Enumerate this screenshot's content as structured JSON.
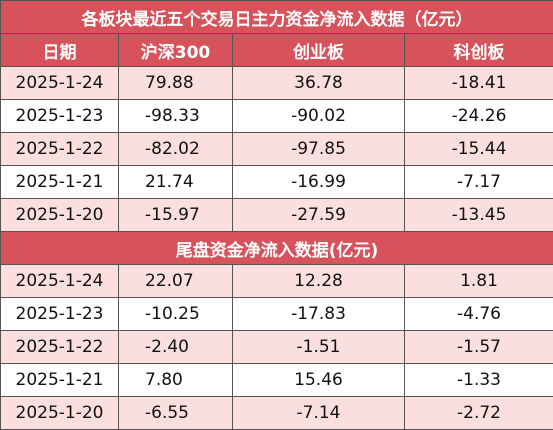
{
  "main": {
    "title": "各板块最近五个交易日主力资金净流入数据（亿元）",
    "columns": [
      "日期",
      "沪深300",
      "创业板",
      "科创板"
    ],
    "rows": [
      [
        "2025-1-24",
        "79.88",
        "36.78",
        "-18.41"
      ],
      [
        "2025-1-23",
        "-98.33",
        "-90.02",
        "-24.26"
      ],
      [
        "2025-1-22",
        "-82.02",
        "-97.85",
        "-15.44"
      ],
      [
        "2025-1-21",
        "21.74",
        "-16.99",
        "-7.17"
      ],
      [
        "2025-1-20",
        "-15.97",
        "-27.59",
        "-13.45"
      ]
    ]
  },
  "tail": {
    "title": "尾盘资金净流入数据(亿元)",
    "rows": [
      [
        "2025-1-24",
        "22.07",
        "12.28",
        "1.81"
      ],
      [
        "2025-1-23",
        "-10.25",
        "-17.83",
        "-4.76"
      ],
      [
        "2025-1-22",
        "-2.40",
        "-1.51",
        "-1.57"
      ],
      [
        "2025-1-21",
        "7.80",
        "15.46",
        "-1.33"
      ],
      [
        "2025-1-20",
        "-6.55",
        "-7.14",
        "-2.72"
      ]
    ]
  }
}
